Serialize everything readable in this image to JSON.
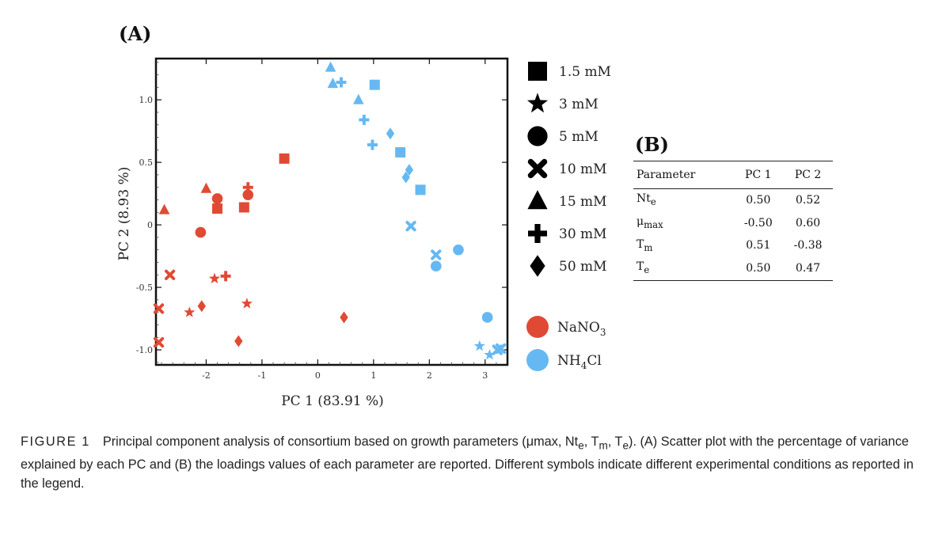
{
  "panel_a_label": "(A)",
  "chart_data": {
    "type": "scatter",
    "xlabel": "PC 1 (83.91 %)",
    "ylabel": "PC 2 (8.93 %)",
    "xlim": [
      -2.9,
      3.4
    ],
    "ylim": [
      -1.12,
      1.33
    ],
    "xticks": [
      -2,
      -1,
      0,
      1,
      2,
      3
    ],
    "xtick_labels": [
      "-2",
      "-1",
      "0",
      "1",
      "2",
      "3"
    ],
    "yticks": [
      1.0,
      0.5,
      0,
      -0.5,
      -1.0
    ],
    "ytick_labels": [
      "1.0",
      "0.5",
      "0",
      "-0.5",
      "-1.0"
    ],
    "grid": false,
    "legend": {
      "shapes": [
        {
          "symbol": "square",
          "label": "1.5 mM"
        },
        {
          "symbol": "star",
          "label": "3 mM"
        },
        {
          "symbol": "circle",
          "label": "5 mM"
        },
        {
          "symbol": "x",
          "label": "10 mM"
        },
        {
          "symbol": "triangle",
          "label": "15 mM"
        },
        {
          "symbol": "plus",
          "label": "30 mM"
        },
        {
          "symbol": "diamond",
          "label": "50 mM"
        }
      ],
      "colors": [
        {
          "name": "NaNO",
          "sub": "3",
          "suffix": "",
          "color": "#E04A34"
        },
        {
          "name": "NH",
          "sub": "4",
          "suffix": "Cl",
          "color": "#66B8F2"
        }
      ]
    },
    "series": [
      {
        "color": "#E04A34",
        "points": [
          {
            "x": -2.75,
            "y": 0.12,
            "m": "triangle"
          },
          {
            "x": -2.0,
            "y": 0.29,
            "m": "triangle"
          },
          {
            "x": -1.8,
            "y": 0.13,
            "m": "square"
          },
          {
            "x": -1.8,
            "y": 0.21,
            "m": "circle"
          },
          {
            "x": -1.32,
            "y": 0.14,
            "m": "square"
          },
          {
            "x": -1.25,
            "y": 0.3,
            "m": "plus"
          },
          {
            "x": -1.25,
            "y": 0.24,
            "m": "circle"
          },
          {
            "x": -0.6,
            "y": 0.53,
            "m": "square"
          },
          {
            "x": -2.1,
            "y": -0.06,
            "m": "circle"
          },
          {
            "x": -2.65,
            "y": -0.4,
            "m": "x"
          },
          {
            "x": -1.85,
            "y": -0.43,
            "m": "star"
          },
          {
            "x": -1.65,
            "y": -0.41,
            "m": "plus"
          },
          {
            "x": -2.85,
            "y": -0.67,
            "m": "x"
          },
          {
            "x": -2.3,
            "y": -0.7,
            "m": "star"
          },
          {
            "x": -2.08,
            "y": -0.65,
            "m": "diamond"
          },
          {
            "x": -1.27,
            "y": -0.63,
            "m": "star"
          },
          {
            "x": -2.85,
            "y": -0.94,
            "m": "x"
          },
          {
            "x": -1.42,
            "y": -0.93,
            "m": "diamond"
          },
          {
            "x": 0.47,
            "y": -0.74,
            "m": "diamond"
          }
        ]
      },
      {
        "color": "#66B8F2",
        "points": [
          {
            "x": 0.23,
            "y": 1.26,
            "m": "triangle"
          },
          {
            "x": 0.27,
            "y": 1.13,
            "m": "triangle"
          },
          {
            "x": 0.42,
            "y": 1.14,
            "m": "plus"
          },
          {
            "x": 1.02,
            "y": 1.12,
            "m": "square"
          },
          {
            "x": 0.73,
            "y": 1.0,
            "m": "triangle"
          },
          {
            "x": 0.83,
            "y": 0.84,
            "m": "plus"
          },
          {
            "x": 0.98,
            "y": 0.64,
            "m": "plus"
          },
          {
            "x": 1.3,
            "y": 0.73,
            "m": "diamond"
          },
          {
            "x": 1.48,
            "y": 0.58,
            "m": "square"
          },
          {
            "x": 1.64,
            "y": 0.44,
            "m": "diamond"
          },
          {
            "x": 1.58,
            "y": 0.38,
            "m": "diamond"
          },
          {
            "x": 1.84,
            "y": 0.28,
            "m": "square"
          },
          {
            "x": 1.67,
            "y": -0.01,
            "m": "x"
          },
          {
            "x": 2.12,
            "y": -0.24,
            "m": "x"
          },
          {
            "x": 2.12,
            "y": -0.33,
            "m": "circle"
          },
          {
            "x": 2.52,
            "y": -0.2,
            "m": "circle"
          },
          {
            "x": 3.04,
            "y": -0.74,
            "m": "circle"
          },
          {
            "x": 2.9,
            "y": -0.97,
            "m": "star"
          },
          {
            "x": 3.08,
            "y": -1.04,
            "m": "star"
          },
          {
            "x": 3.22,
            "y": -1.0,
            "m": "x"
          },
          {
            "x": 3.28,
            "y": -0.99,
            "m": "x"
          }
        ]
      }
    ]
  },
  "table_b": {
    "title": "(B)",
    "headers": [
      "Parameter",
      "PC 1",
      "PC 2"
    ],
    "rows": [
      {
        "param": "Nt",
        "sub": "e",
        "pc1": "0.50",
        "pc2": "0.52"
      },
      {
        "param": "μ",
        "sub": "max",
        "pc1": "-0.50",
        "pc2": "0.60"
      },
      {
        "param": "T",
        "sub": "m",
        "pc1": "0.51",
        "pc2": "-0.38"
      },
      {
        "param": "T",
        "sub": "e",
        "pc1": "0.50",
        "pc2": "0.47"
      }
    ]
  },
  "caption": {
    "label": "FIGURE 1",
    "t1": "Principal component analysis of consortium based on growth parameters (μmax, Nt",
    "s1": "e",
    "t2": ", T",
    "s2": "m",
    "t3": ", T",
    "s3": "e",
    "t4": "). (A) Scatter plot with the percentage of variance explained by each PC and (B) the loadings values of each parameter are reported. Different symbols indicate different experimental conditions as reported in the legend."
  }
}
